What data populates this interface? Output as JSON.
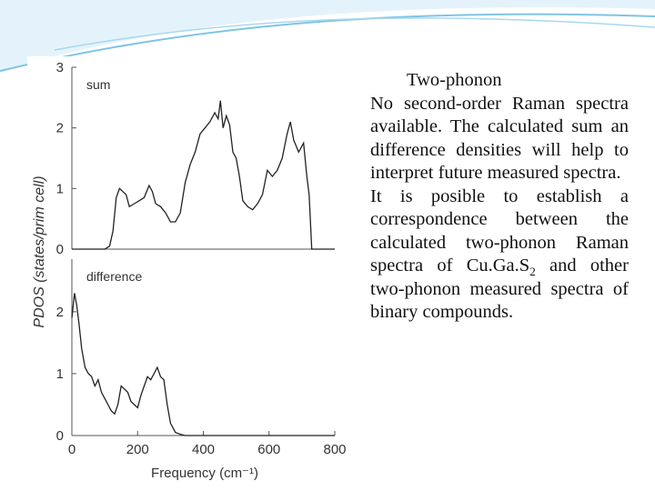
{
  "chart_data": [
    {
      "type": "line",
      "annotation": "sum",
      "ylabel": "PDOS (states/prim cell)",
      "x": [
        0,
        50,
        100,
        115,
        125,
        135,
        145,
        155,
        165,
        175,
        190,
        205,
        220,
        235,
        245,
        255,
        270,
        285,
        300,
        315,
        330,
        345,
        360,
        375,
        390,
        405,
        420,
        435,
        445,
        452,
        460,
        470,
        480,
        490,
        500,
        510,
        520,
        535,
        550,
        565,
        580,
        595,
        610,
        625,
        640,
        655,
        665,
        675,
        690,
        705,
        715,
        722,
        730,
        750,
        800
      ],
      "values": [
        0,
        0,
        0,
        0.05,
        0.3,
        0.85,
        1.0,
        0.95,
        0.9,
        0.7,
        0.75,
        0.8,
        0.85,
        1.05,
        0.95,
        0.75,
        0.7,
        0.6,
        0.45,
        0.45,
        0.6,
        1.1,
        1.4,
        1.6,
        1.9,
        2.0,
        2.1,
        2.25,
        2.15,
        2.45,
        2.0,
        2.2,
        2.05,
        1.6,
        1.5,
        1.2,
        0.8,
        0.7,
        0.65,
        0.75,
        0.9,
        1.3,
        1.2,
        1.3,
        1.5,
        1.9,
        2.1,
        1.8,
        1.6,
        1.75,
        1.2,
        0.9,
        0,
        0,
        0
      ],
      "color": "#222222",
      "xlim": [
        0,
        800
      ],
      "ylim": [
        0,
        3
      ],
      "yticks": [
        0,
        1,
        2,
        3
      ]
    },
    {
      "type": "line",
      "annotation": "difference",
      "xlabel": "Frequency (cm⁻¹)",
      "x": [
        0,
        8,
        15,
        22,
        30,
        40,
        50,
        60,
        70,
        80,
        90,
        100,
        110,
        120,
        130,
        140,
        150,
        160,
        170,
        180,
        190,
        200,
        210,
        220,
        230,
        240,
        250,
        260,
        270,
        280,
        290,
        300,
        315,
        330,
        345,
        360,
        400,
        450,
        800
      ],
      "values": [
        1.9,
        2.3,
        2.1,
        1.8,
        1.4,
        1.1,
        1.0,
        0.95,
        0.8,
        0.9,
        0.7,
        0.6,
        0.5,
        0.4,
        0.35,
        0.5,
        0.8,
        0.75,
        0.7,
        0.55,
        0.5,
        0.45,
        0.65,
        0.8,
        0.95,
        0.9,
        1.0,
        1.1,
        0.95,
        0.9,
        0.5,
        0.2,
        0.05,
        0.02,
        0,
        0,
        0,
        0,
        0
      ],
      "color": "#222222",
      "xlim": [
        0,
        800
      ],
      "ylim": [
        0,
        2.85
      ],
      "yticks": [
        0,
        1,
        2
      ],
      "xticks": [
        0,
        200,
        400,
        600,
        800
      ]
    }
  ],
  "text": {
    "heading": "Two-phonon",
    "paragraph1": "No second-order Raman spectra available. The calculated sum an difference densities will help to interpret future measured spectra.",
    "paragraph2": [
      "It is posible to establish a correspondence between the calculated two-phonon Raman spectra of Cu.Ga.S",
      "2",
      " and other two-phonon measured spectra of binary compounds."
    ]
  }
}
